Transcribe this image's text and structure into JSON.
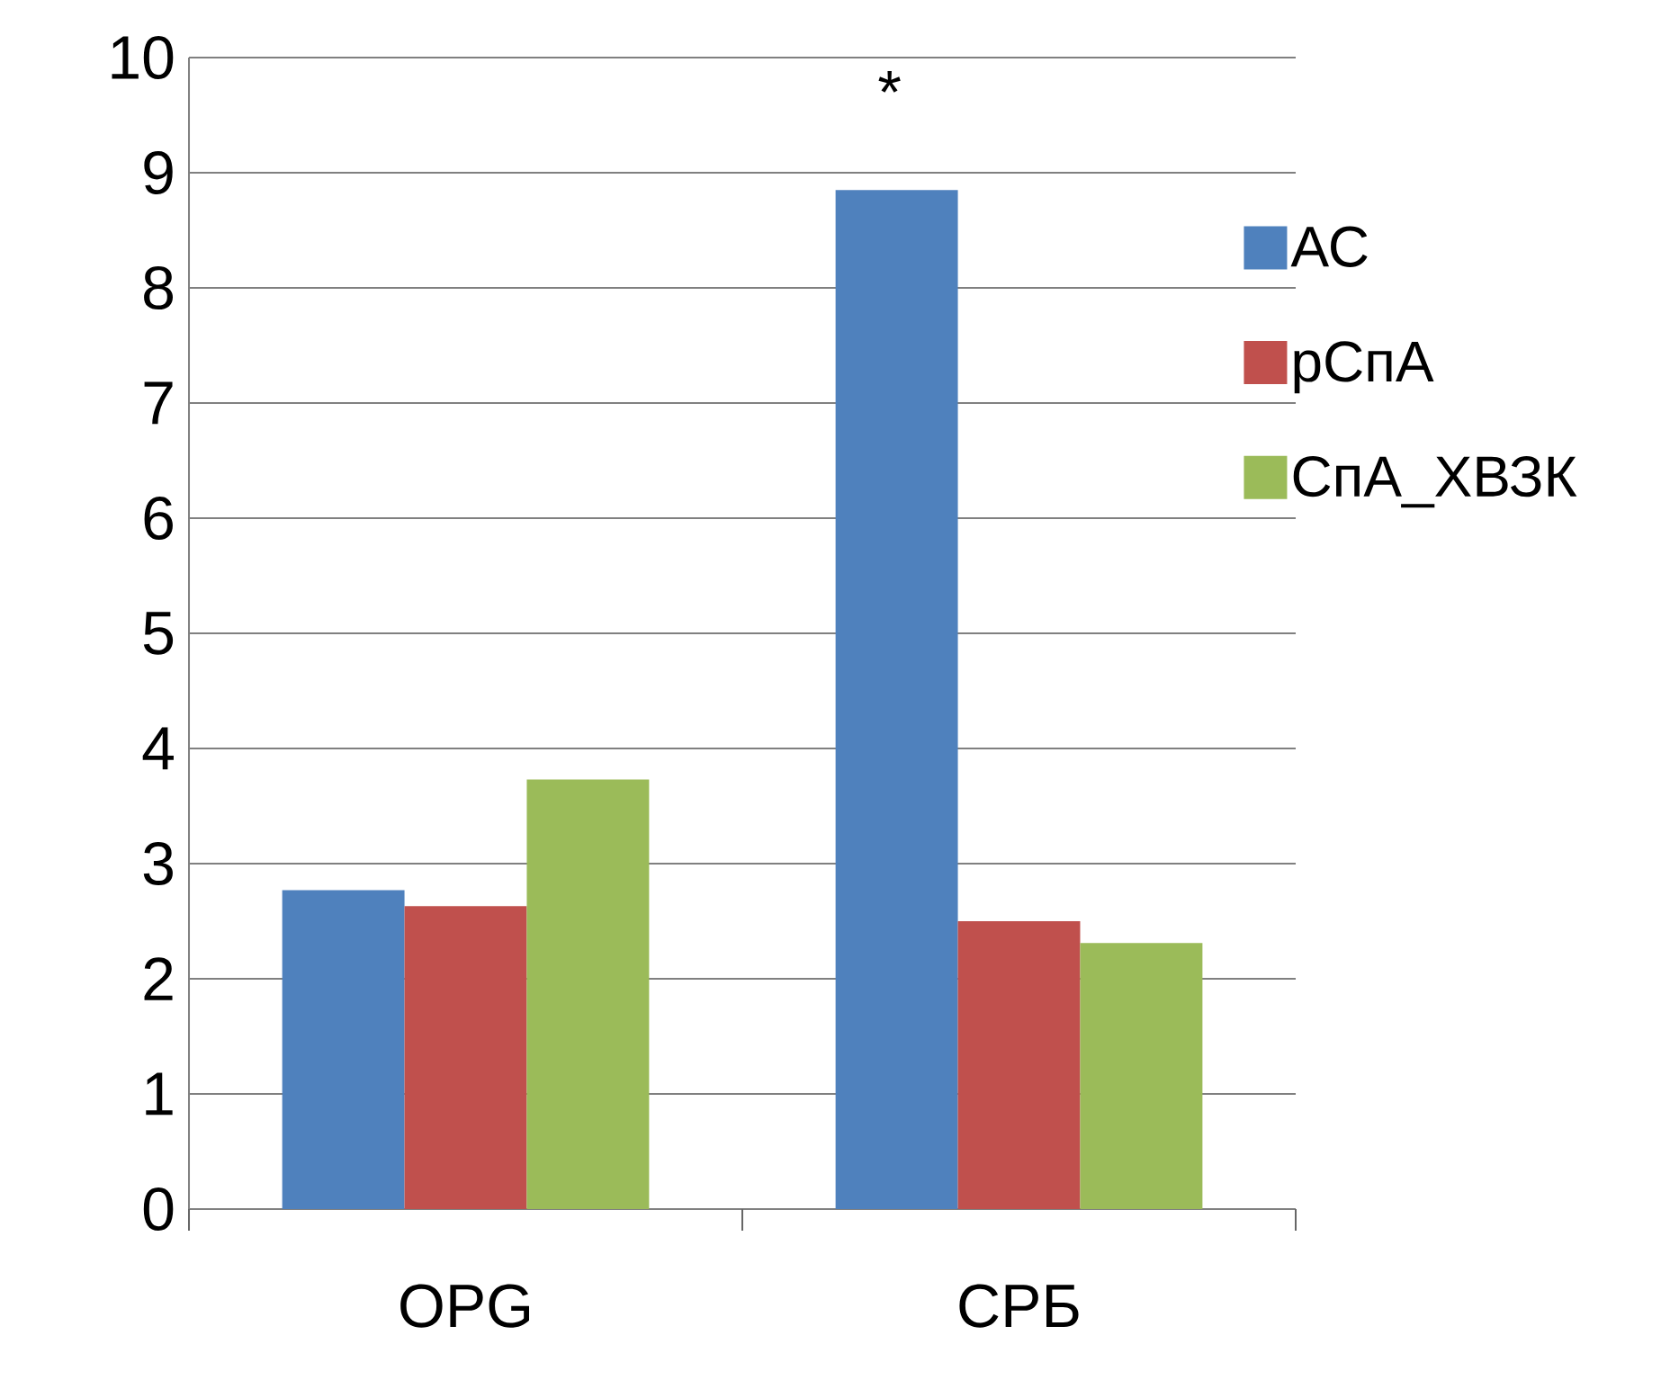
{
  "chart_data": {
    "type": "bar",
    "categories": [
      "OPG",
      "СРБ"
    ],
    "series": [
      {
        "name": "АС",
        "color": "#4f81bd",
        "values": [
          2.77,
          8.85
        ]
      },
      {
        "name": "рСпА",
        "color": "#c0504d",
        "values": [
          2.63,
          2.5
        ]
      },
      {
        "name": "СпА_ХВЗК",
        "color": "#9bbb59",
        "values": [
          3.73,
          2.31
        ]
      }
    ],
    "ylim": [
      0,
      10
    ],
    "yticks": [
      0,
      1,
      2,
      3,
      4,
      5,
      6,
      7,
      8,
      9,
      10
    ],
    "grid": "y",
    "legend": "right",
    "annotations": [
      "*"
    ]
  }
}
